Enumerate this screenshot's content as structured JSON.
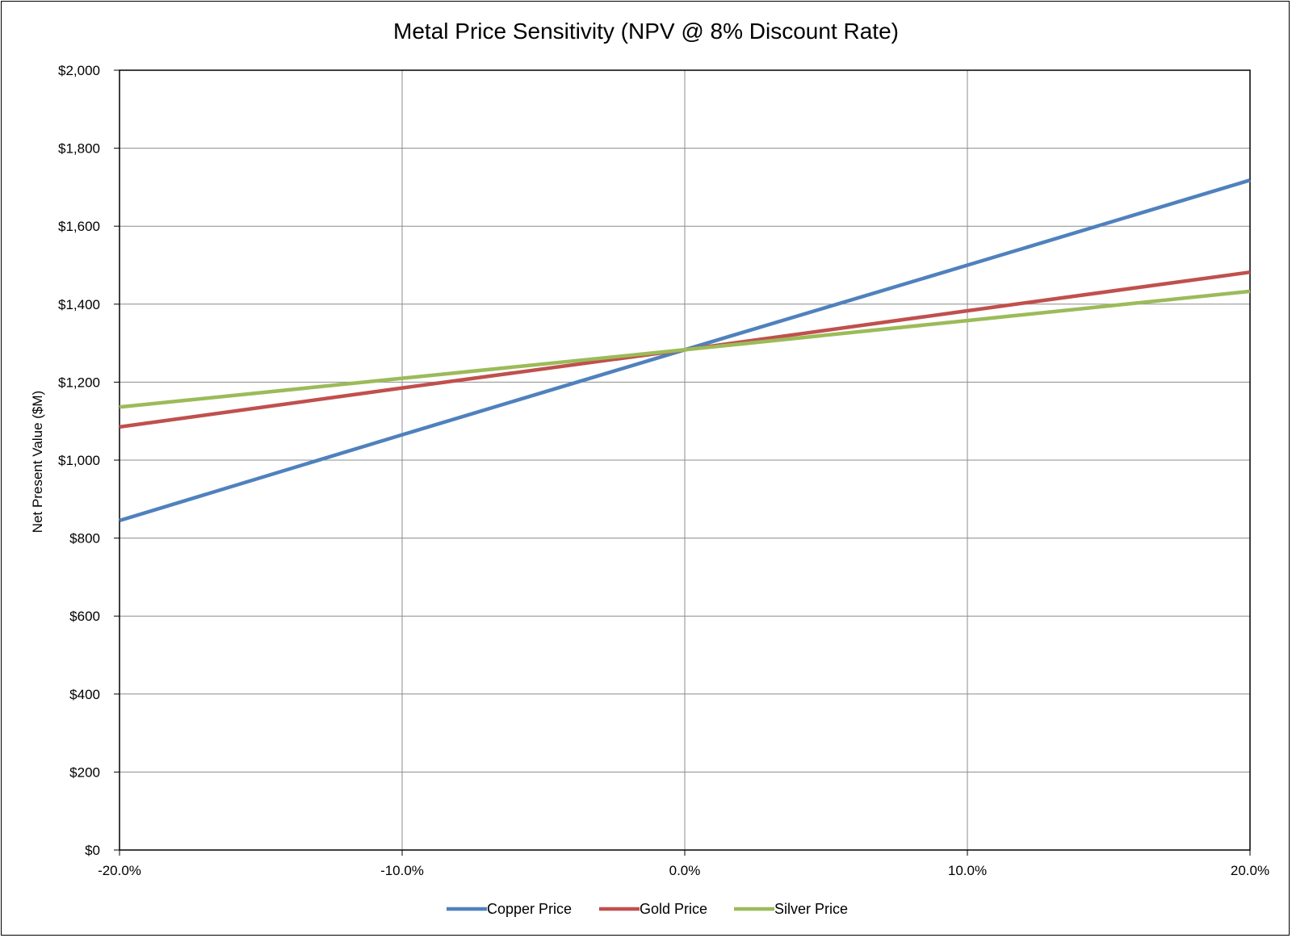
{
  "chart_data": {
    "type": "line",
    "title": "Metal Price Sensitivity (NPV @ 8% Discount Rate)",
    "xlabel": "",
    "ylabel": "Net Present Value ($M)",
    "x": [
      -20,
      -10,
      0,
      10,
      20
    ],
    "x_tick_labels": [
      "-20.0%",
      "-10.0%",
      "0.0%",
      "10.0%",
      "20.0%"
    ],
    "xlim": [
      -20,
      20
    ],
    "ylim": [
      0,
      2000
    ],
    "y_ticks": [
      0,
      200,
      400,
      600,
      800,
      1000,
      1200,
      1400,
      1600,
      1800,
      2000
    ],
    "y_tick_labels": [
      "$0",
      "$200",
      "$400",
      "$600",
      "$800",
      "$1,000",
      "$1,200",
      "$1,400",
      "$1,600",
      "$1,800",
      "$2,000"
    ],
    "grid": true,
    "legend_position": "bottom",
    "series": [
      {
        "name": "Copper Price",
        "color": "#4F81BD",
        "values": [
          845,
          1065,
          1283,
          1500,
          1718
        ]
      },
      {
        "name": "Gold Price",
        "color": "#C0504D",
        "values": [
          1085,
          1185,
          1283,
          1383,
          1482
        ]
      },
      {
        "name": "Silver Price",
        "color": "#9BBB59",
        "values": [
          1136,
          1210,
          1283,
          1358,
          1433
        ]
      }
    ]
  }
}
